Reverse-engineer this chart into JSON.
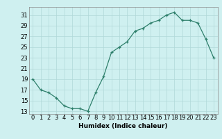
{
  "xlabel": "Humidex (Indice chaleur)",
  "x": [
    0,
    1,
    2,
    3,
    4,
    5,
    6,
    7,
    8,
    9,
    10,
    11,
    12,
    13,
    14,
    15,
    16,
    17,
    18,
    19,
    20,
    21,
    22,
    23
  ],
  "y": [
    19,
    17,
    16.5,
    15.5,
    14,
    13.5,
    13.5,
    13,
    16.5,
    19.5,
    24,
    25,
    26,
    28,
    28.5,
    29.5,
    30,
    31,
    31.5,
    30,
    30,
    29.5,
    26.5,
    23
  ],
  "line_color": "#2e7f6b",
  "marker": "+",
  "bg_color": "#cff0f0",
  "grid_color": "#b0d8d8",
  "xlim": [
    -0.5,
    23.5
  ],
  "ylim": [
    12.5,
    32.5
  ],
  "yticks": [
    13,
    15,
    17,
    19,
    21,
    23,
    25,
    27,
    29,
    31
  ],
  "xticks": [
    0,
    1,
    2,
    3,
    4,
    5,
    6,
    7,
    8,
    9,
    10,
    11,
    12,
    13,
    14,
    15,
    16,
    17,
    18,
    19,
    20,
    21,
    22,
    23
  ],
  "label_fontsize": 6.5,
  "tick_fontsize": 6.0,
  "line_width": 0.9,
  "marker_size": 3.5,
  "spine_color": "#888888"
}
